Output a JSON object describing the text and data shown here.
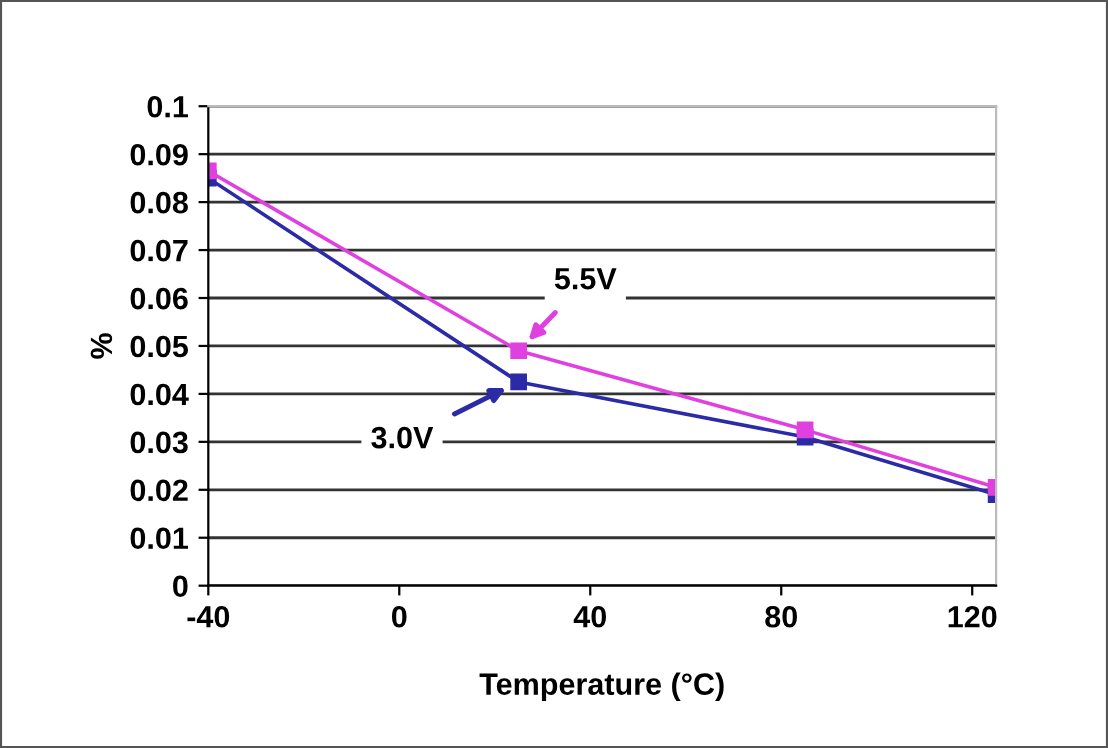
{
  "chart_data": {
    "type": "line",
    "xlabel": "Temperature (°C)",
    "ylabel": "%",
    "x": [
      -40,
      25,
      85,
      125
    ],
    "series": [
      {
        "name": "3.0V",
        "color": "#2b2ba8",
        "values": [
          0.085,
          0.0425,
          0.031,
          0.019
        ]
      },
      {
        "name": "5.5V",
        "color": "#e040e0",
        "values": [
          0.0865,
          0.049,
          0.0325,
          0.0205
        ]
      }
    ],
    "xlim": [
      -40,
      125
    ],
    "xticks": [
      -40,
      0,
      40,
      80,
      120
    ],
    "ylim": [
      0,
      0.1
    ],
    "yticks": [
      0,
      0.01,
      0.02,
      0.03,
      0.04,
      0.05,
      0.06,
      0.07,
      0.08,
      0.09,
      0.1
    ],
    "grid": "y",
    "legend": false,
    "marker": "square",
    "line_style": "solid"
  }
}
